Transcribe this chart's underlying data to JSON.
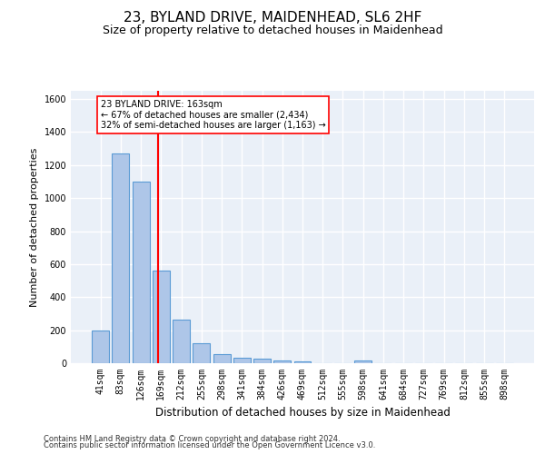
{
  "title": "23, BYLAND DRIVE, MAIDENHEAD, SL6 2HF",
  "subtitle": "Size of property relative to detached houses in Maidenhead",
  "xlabel": "Distribution of detached houses by size in Maidenhead",
  "ylabel": "Number of detached properties",
  "categories": [
    "41sqm",
    "83sqm",
    "126sqm",
    "169sqm",
    "212sqm",
    "255sqm",
    "298sqm",
    "341sqm",
    "384sqm",
    "426sqm",
    "469sqm",
    "512sqm",
    "555sqm",
    "598sqm",
    "641sqm",
    "684sqm",
    "727sqm",
    "769sqm",
    "812sqm",
    "855sqm",
    "898sqm"
  ],
  "values": [
    200,
    1270,
    1100,
    560,
    265,
    120,
    55,
    35,
    25,
    15,
    10,
    0,
    0,
    15,
    0,
    0,
    0,
    0,
    0,
    0,
    0
  ],
  "bar_color": "#aec6e8",
  "bar_edge_color": "#5b9bd5",
  "vline_color": "red",
  "annotation_text": "23 BYLAND DRIVE: 163sqm\n← 67% of detached houses are smaller (2,434)\n32% of semi-detached houses are larger (1,163) →",
  "annotation_box_color": "white",
  "annotation_box_edge_color": "red",
  "ylim": [
    0,
    1650
  ],
  "yticks": [
    0,
    200,
    400,
    600,
    800,
    1000,
    1200,
    1400,
    1600
  ],
  "bg_color": "#eaf0f8",
  "grid_color": "white",
  "footer1": "Contains HM Land Registry data © Crown copyright and database right 2024.",
  "footer2": "Contains public sector information licensed under the Open Government Licence v3.0.",
  "title_fontsize": 11,
  "subtitle_fontsize": 9,
  "ylabel_fontsize": 8,
  "xlabel_fontsize": 8.5,
  "tick_fontsize": 7,
  "annotation_fontsize": 7,
  "footer_fontsize": 6
}
